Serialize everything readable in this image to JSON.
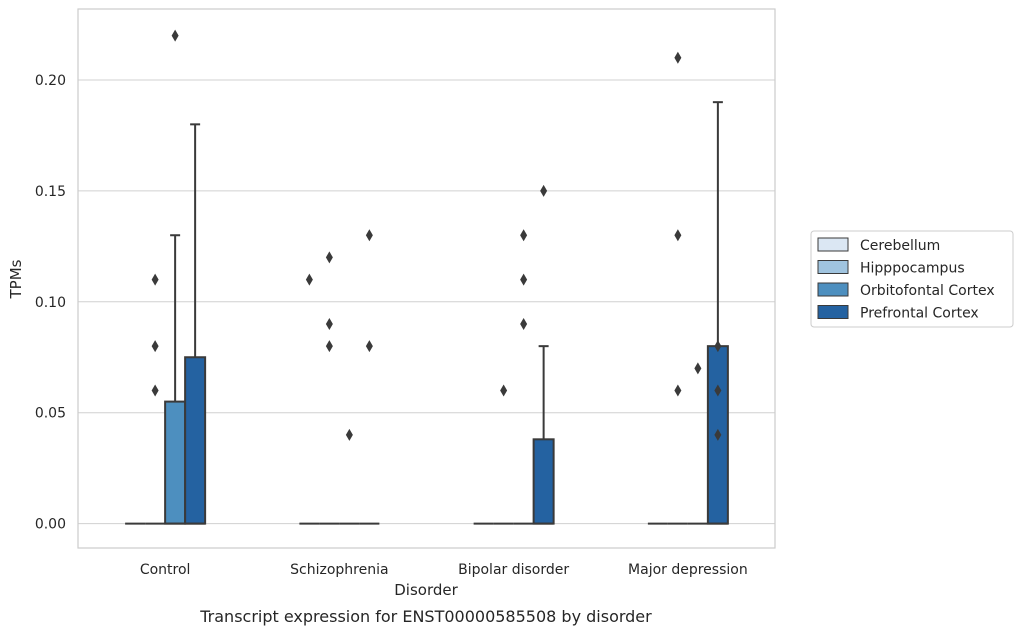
{
  "chart_data": {
    "type": "box",
    "title": "",
    "caption": "Transcript expression for ENST00000585508 by disorder",
    "xlabel": "Disorder",
    "ylabel": "TPMs",
    "ylim": [
      -0.011,
      0.232
    ],
    "yticks": [
      "0.00",
      "0.05",
      "0.10",
      "0.15",
      "0.20"
    ],
    "ytick_values": [
      0.0,
      0.05,
      0.1,
      0.15,
      0.2
    ],
    "grid": "horizontal",
    "legend_position": "right",
    "categories": [
      "Control",
      "Schizophrenia",
      "Bipolar disorder",
      "Major depression"
    ],
    "series": [
      {
        "name": "Cerebellum",
        "color": "#dbe7f3",
        "boxes": [
          {
            "q1": 0,
            "median": 0,
            "q3": 0,
            "whislo": 0,
            "whishi": 0,
            "fliers": []
          },
          {
            "q1": 0,
            "median": 0,
            "q3": 0,
            "whislo": 0,
            "whishi": 0,
            "fliers": [
              0.11
            ]
          },
          {
            "q1": 0,
            "median": 0,
            "q3": 0,
            "whislo": 0,
            "whishi": 0,
            "fliers": []
          },
          {
            "q1": 0,
            "median": 0,
            "q3": 0,
            "whislo": 0,
            "whishi": 0,
            "fliers": []
          }
        ]
      },
      {
        "name": "Hipppocampus",
        "color": "#a0c4df",
        "boxes": [
          {
            "q1": 0,
            "median": 0,
            "q3": 0,
            "whislo": 0,
            "whishi": 0,
            "fliers": [
              0.06,
              0.08,
              0.11
            ]
          },
          {
            "q1": 0,
            "median": 0,
            "q3": 0,
            "whislo": 0,
            "whishi": 0,
            "fliers": [
              0.08,
              0.09,
              0.12
            ]
          },
          {
            "q1": 0,
            "median": 0,
            "q3": 0,
            "whislo": 0,
            "whishi": 0,
            "fliers": [
              0.06
            ]
          },
          {
            "q1": 0,
            "median": 0,
            "q3": 0,
            "whislo": 0,
            "whishi": 0,
            "fliers": [
              0.06,
              0.13,
              0.21
            ]
          }
        ]
      },
      {
        "name": "Orbitofontal Cortex",
        "color": "#4d8fbf",
        "boxes": [
          {
            "q1": 0,
            "median": 0,
            "q3": 0.055,
            "whislo": 0,
            "whishi": 0.13,
            "fliers": [
              0.22
            ]
          },
          {
            "q1": 0,
            "median": 0,
            "q3": 0,
            "whislo": 0,
            "whishi": 0,
            "fliers": [
              0.04
            ]
          },
          {
            "q1": 0,
            "median": 0,
            "q3": 0,
            "whislo": 0,
            "whishi": 0,
            "fliers": [
              0.09,
              0.11,
              0.13
            ]
          },
          {
            "q1": 0,
            "median": 0,
            "q3": 0,
            "whislo": 0,
            "whishi": 0,
            "fliers": [
              0.07
            ]
          }
        ]
      },
      {
        "name": "Prefrontal Cortex",
        "color": "#2462a1",
        "boxes": [
          {
            "q1": 0,
            "median": 0,
            "q3": 0.075,
            "whislo": 0,
            "whishi": 0.18,
            "fliers": []
          },
          {
            "q1": 0,
            "median": 0,
            "q3": 0,
            "whislo": 0,
            "whishi": 0,
            "fliers": [
              0.08,
              0.13
            ]
          },
          {
            "q1": 0,
            "median": 0,
            "q3": 0.038,
            "whislo": 0,
            "whishi": 0.08,
            "fliers": [
              0.15
            ]
          },
          {
            "q1": 0,
            "median": 0,
            "q3": 0.08,
            "whislo": 0,
            "whishi": 0.19,
            "fliers": [
              0.04,
              0.06,
              0.08
            ]
          }
        ]
      }
    ]
  }
}
